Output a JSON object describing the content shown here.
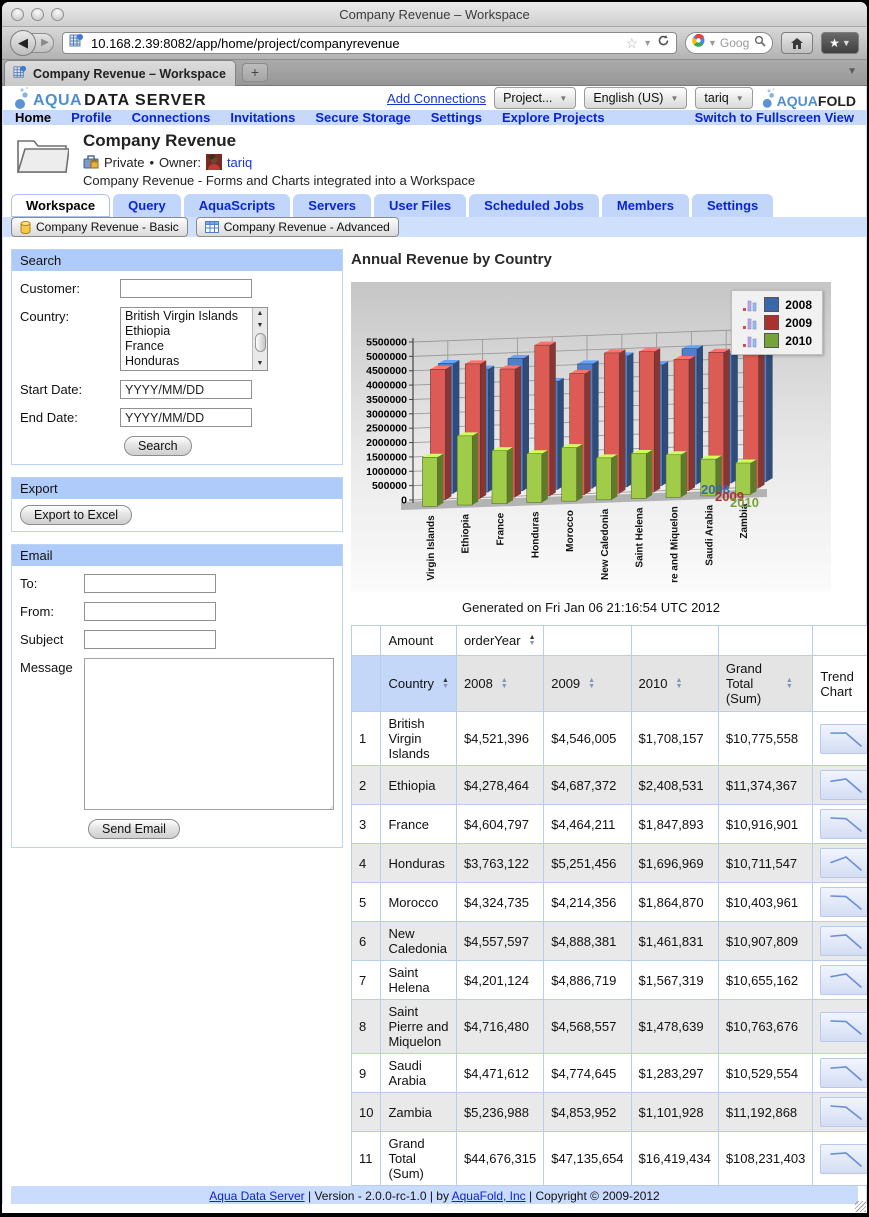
{
  "browser": {
    "window_title": "Company Revenue – Workspace",
    "url": "10.168.2.39:8082/app/home/project/companyrevenue",
    "search_placeholder": "Goog",
    "tab_title": "Company Revenue – Workspace",
    "new_tab_label": "+"
  },
  "header": {
    "logo_primary": "AQUA",
    "logo_secondary": "DATA SERVER",
    "add_connections": "Add Connections",
    "project_dropdown": "Project...",
    "language_dropdown": "English (US)",
    "user_dropdown": "tariq",
    "brand_primary": "AQUA",
    "brand_secondary": "FOLD"
  },
  "nav": {
    "items": [
      "Home",
      "Profile",
      "Connections",
      "Invitations",
      "Secure Storage",
      "Settings",
      "Explore Projects"
    ],
    "current": "Home",
    "right": "Switch to Fullscreen View"
  },
  "project": {
    "title": "Company Revenue",
    "visibility": "Private",
    "separator": "•",
    "owner_label": "Owner:",
    "owner": "tariq",
    "description": "Company Revenue - Forms and Charts integrated into a Workspace"
  },
  "tabs": {
    "items": [
      "Workspace",
      "Query",
      "AquaScripts",
      "Servers",
      "User Files",
      "Scheduled Jobs",
      "Members",
      "Settings"
    ],
    "active": "Workspace"
  },
  "subtabs": {
    "basic": "Company Revenue - Basic",
    "advanced": "Company Revenue - Advanced"
  },
  "search_panel": {
    "title": "Search",
    "customer_label": "Customer:",
    "country_label": "Country:",
    "countries": [
      "British Virgin Islands",
      "Ethiopia",
      "France",
      "Honduras"
    ],
    "start_date_label": "Start Date:",
    "start_date_value": "YYYY/MM/DD",
    "end_date_label": "End Date:",
    "end_date_value": "YYYY/MM/DD",
    "search_button": "Search"
  },
  "export_panel": {
    "title": "Export",
    "button": "Export to Excel"
  },
  "email_panel": {
    "title": "Email",
    "to_label": "To:",
    "from_label": "From:",
    "subject_label": "Subject",
    "message_label": "Message",
    "send_button": "Send Email"
  },
  "chart_data": {
    "type": "bar",
    "title": "Annual Revenue by Country",
    "caption": "Generated on Fri Jan 06 21:16:54 UTC 2012",
    "categories": [
      "British Virgin Islands",
      "Ethiopia",
      "France",
      "Honduras",
      "Morocco",
      "New Caledonia",
      "Saint Helena",
      "Saint Pierre and Miquelon",
      "Saudi Arabia",
      "Zambia"
    ],
    "categories_axis": [
      "Virgin Islands",
      "Ethiopia",
      "France",
      "Honduras",
      "Morocco",
      "New Caledonia",
      "Saint Helena",
      "re and Miquelon",
      "Saudi Arabia",
      "Zambia"
    ],
    "series": [
      {
        "name": "2008",
        "color": "#4e80c8",
        "legend_color": "#3a66ab",
        "values": [
          4521396,
          4278464,
          4604797,
          3763122,
          4324735,
          4557597,
          4201124,
          4716480,
          4471612,
          5236988
        ]
      },
      {
        "name": "2009",
        "color": "#dc5b55",
        "legend_color": "#aa322e",
        "values": [
          4546005,
          4687372,
          4464211,
          5251456,
          4214356,
          4888381,
          4886719,
          4568557,
          4774645,
          4853952
        ]
      },
      {
        "name": "2010",
        "color": "#a0cc49",
        "legend_color": "#78a139",
        "values": [
          1708157,
          2408531,
          1847893,
          1696969,
          1864870,
          1461831,
          1567319,
          1478639,
          1283297,
          1101928
        ]
      }
    ],
    "ylim": [
      0,
      5500000
    ],
    "ytick_step": 500000,
    "grid": true,
    "legend_position": "top-right"
  },
  "table": {
    "amount_label": "Amount",
    "order_year_label": "orderYear",
    "columns": {
      "country": "Country",
      "y2008": "2008",
      "y2009": "2009",
      "y2010": "2010",
      "total": "Grand Total (Sum)",
      "trend": "Trend Chart"
    },
    "rows": [
      {
        "num": "1",
        "country": "British Virgin Islands",
        "y2008": "$4,521,396",
        "y2009": "$4,546,005",
        "y2010": "$1,708,157",
        "total": "$10,775,558"
      },
      {
        "num": "2",
        "country": "Ethiopia",
        "y2008": "$4,278,464",
        "y2009": "$4,687,372",
        "y2010": "$2,408,531",
        "total": "$11,374,367"
      },
      {
        "num": "3",
        "country": "France",
        "y2008": "$4,604,797",
        "y2009": "$4,464,211",
        "y2010": "$1,847,893",
        "total": "$10,916,901"
      },
      {
        "num": "4",
        "country": "Honduras",
        "y2008": "$3,763,122",
        "y2009": "$5,251,456",
        "y2010": "$1,696,969",
        "total": "$10,711,547"
      },
      {
        "num": "5",
        "country": "Morocco",
        "y2008": "$4,324,735",
        "y2009": "$4,214,356",
        "y2010": "$1,864,870",
        "total": "$10,403,961"
      },
      {
        "num": "6",
        "country": "New Caledonia",
        "y2008": "$4,557,597",
        "y2009": "$4,888,381",
        "y2010": "$1,461,831",
        "total": "$10,907,809"
      },
      {
        "num": "7",
        "country": "Saint Helena",
        "y2008": "$4,201,124",
        "y2009": "$4,886,719",
        "y2010": "$1,567,319",
        "total": "$10,655,162"
      },
      {
        "num": "8",
        "country": "Saint Pierre and Miquelon",
        "y2008": "$4,716,480",
        "y2009": "$4,568,557",
        "y2010": "$1,478,639",
        "total": "$10,763,676"
      },
      {
        "num": "9",
        "country": "Saudi Arabia",
        "y2008": "$4,471,612",
        "y2009": "$4,774,645",
        "y2010": "$1,283,297",
        "total": "$10,529,554"
      },
      {
        "num": "10",
        "country": "Zambia",
        "y2008": "$5,236,988",
        "y2009": "$4,853,952",
        "y2010": "$1,101,928",
        "total": "$11,192,868"
      },
      {
        "num": "11",
        "country": "Grand Total (Sum)",
        "y2008": "$44,676,315",
        "y2009": "$47,135,654",
        "y2010": "$16,419,434",
        "total": "$108,231,403"
      }
    ]
  },
  "footer": {
    "link1": "Aqua Data Server",
    "mid": " | Version - 2.0.0-rc-1.0 | by ",
    "link2": "AquaFold, Inc",
    "end": " | Copyright © 2009-2012"
  }
}
